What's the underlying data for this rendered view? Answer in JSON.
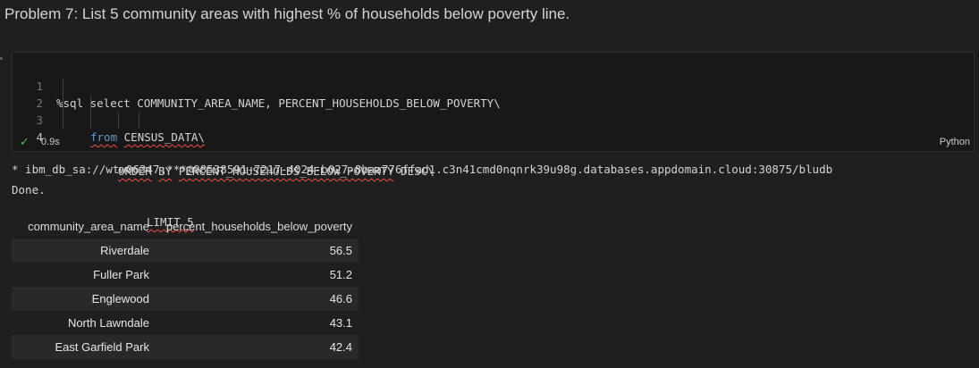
{
  "markdown": {
    "heading": "Problem 7: List 5 community areas with highest % of households below poverty line."
  },
  "cell": {
    "line_numbers": [
      "1",
      "2",
      "3",
      "4"
    ],
    "code": {
      "line1": "%sql select COMMUNITY_AREA_NAME, PERCENT_HOUSEHOLDS_BELOW_POVERTY\\",
      "line2_kw": "from",
      "line2_rest": "CENSUS_DATA\\",
      "line3_order": "ORDER",
      "line3_by": "BY",
      "line3_col": "PERCENT_HOUSEHOLDS_BELOW_POVERTY",
      "line3_desc": "DESC\\",
      "line4": "LIMIT 5"
    },
    "status": {
      "check_symbol": "✓",
      "time": "0.9s",
      "language": "Python"
    }
  },
  "output": {
    "connection": " * ibm_db_sa://wtw06347:***@98538591-7217-4024-b027-8baa776ffad1.c3n41cmd0nqnrk39u98g.databases.appdomain.cloud:30875/bludb",
    "done": "Done.",
    "table": {
      "headers": [
        "community_area_name",
        "percent_households_below_poverty"
      ],
      "rows": [
        [
          "Riverdale",
          "56.5"
        ],
        [
          "Fuller Park",
          "51.2"
        ],
        [
          "Englewood",
          "46.6"
        ],
        [
          "North Lawndale",
          "43.1"
        ],
        [
          "East Garfield Park",
          "42.4"
        ]
      ]
    }
  },
  "colors": {
    "background": "#1f1f1f",
    "keyword": "#569cd6",
    "success": "#4ec04e",
    "error_squiggle": "#f14c4c"
  }
}
